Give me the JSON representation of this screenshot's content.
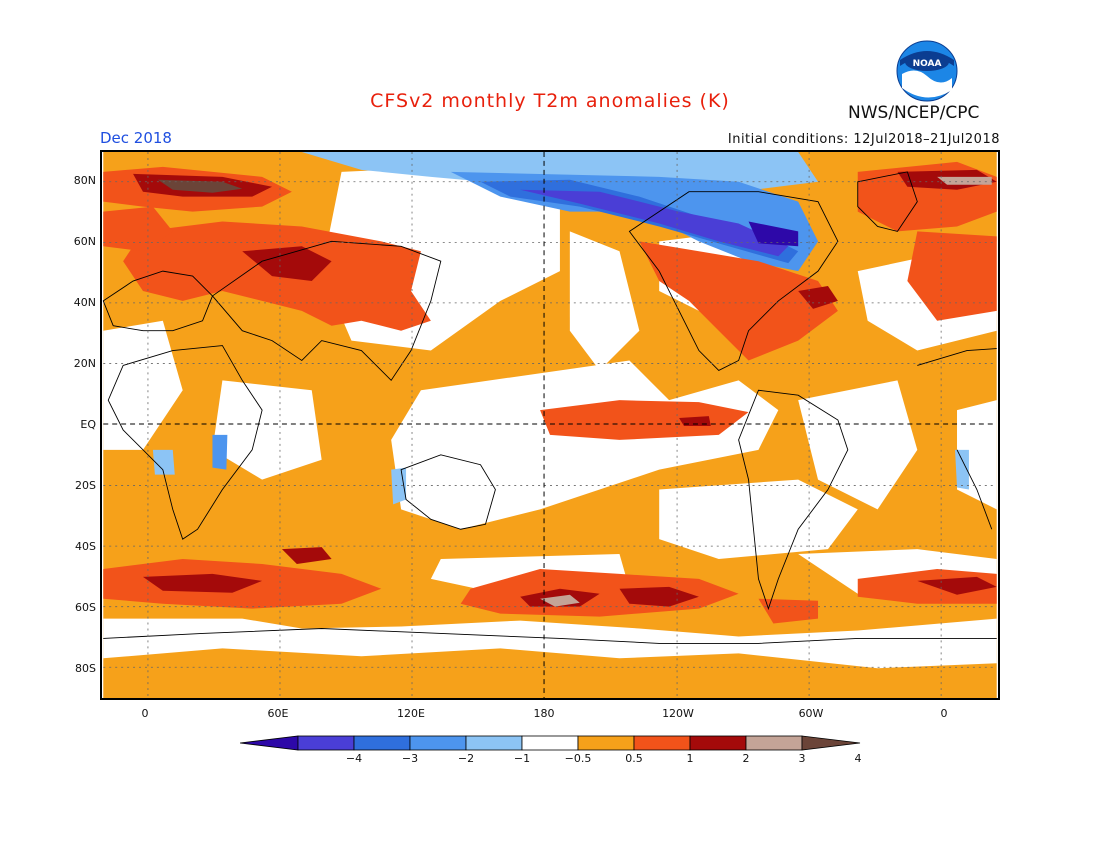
{
  "header": {
    "title": "CFSv2 monthly T2m anomalies (K)",
    "agency": "NWS/NCEP/CPC",
    "logo_text": "NOAA",
    "valid_month": "Dec 2018",
    "initial_conditions": "Initial conditions: 12Jul2018–21Jul2018"
  },
  "map": {
    "lat_labels": [
      "80N",
      "60N",
      "40N",
      "20N",
      "EQ",
      "20S",
      "40S",
      "60S",
      "80S"
    ],
    "lon_labels": [
      "0",
      "60E",
      "120E",
      "180",
      "120W",
      "60W",
      "0"
    ]
  },
  "colorbar": {
    "labels": [
      "−4",
      "−3",
      "−2",
      "−1",
      "−0.5",
      "0.5",
      "1",
      "2",
      "3",
      "4"
    ],
    "colors": [
      "#2d08a8",
      "#4a3ed6",
      "#2f6fdd",
      "#4d95ee",
      "#8cc4f5",
      "#ffffff",
      "#f6a11a",
      "#f2531a",
      "#a40a0a",
      "#c4a497",
      "#6b4438"
    ]
  }
}
